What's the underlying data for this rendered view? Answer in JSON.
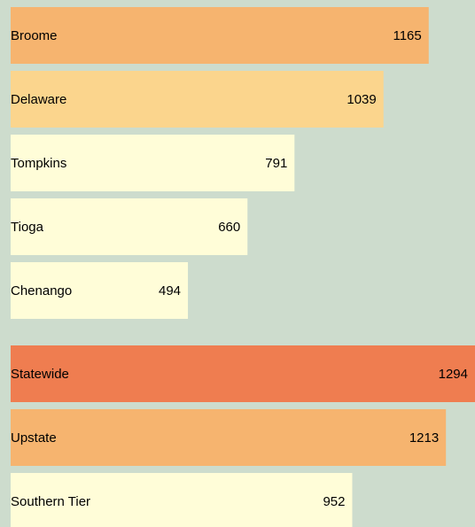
{
  "chart_data": [
    {
      "type": "bar",
      "categories": [
        "Broome",
        "Delaware",
        "Tompkins",
        "Tioga",
        "Chenango"
      ],
      "values": [
        1165,
        1039,
        791,
        660,
        494
      ],
      "colors": [
        "#f6b46f",
        "#fbd58d",
        "#fffdd8",
        "#fffdd8",
        "#fffdd8"
      ]
    },
    {
      "type": "bar",
      "categories": [
        "Statewide",
        "Upstate",
        "Southern Tier"
      ],
      "values": [
        1294,
        1213,
        952
      ],
      "colors": [
        "#ef7d50",
        "#f6b46f",
        "#fffdd8"
      ]
    }
  ]
}
